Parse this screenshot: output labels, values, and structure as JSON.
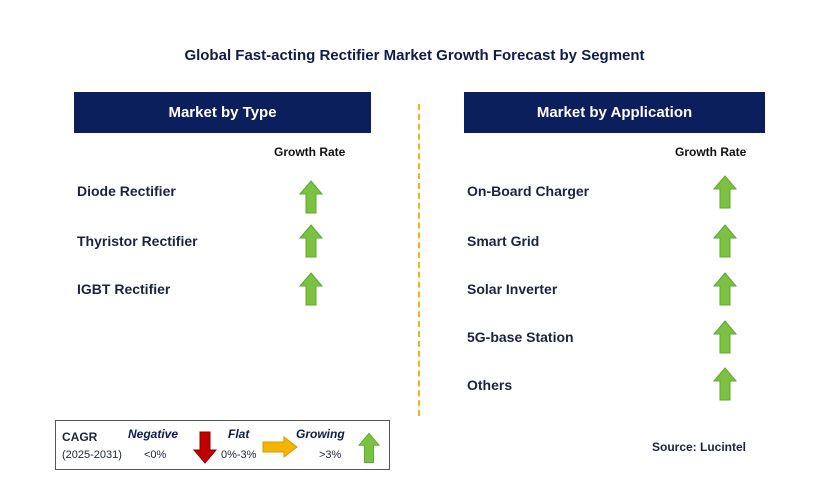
{
  "title": "Global Fast-acting Rectifier Market Growth Forecast by Segment",
  "left_panel": {
    "header": "Market by Type",
    "growth_label": "Growth Rate",
    "items": [
      {
        "label": "Diode Rectifier",
        "trend": "growing"
      },
      {
        "label": "Thyristor Rectifier",
        "trend": "growing"
      },
      {
        "label": "IGBT Rectifier",
        "trend": "growing"
      }
    ]
  },
  "right_panel": {
    "header": "Market by Application",
    "growth_label": "Growth Rate",
    "items": [
      {
        "label": "On-Board Charger",
        "trend": "growing"
      },
      {
        "label": "Smart Grid",
        "trend": "growing"
      },
      {
        "label": "Solar Inverter",
        "trend": "growing"
      },
      {
        "label": "5G-base Station",
        "trend": "growing"
      },
      {
        "label": "Others",
        "trend": "growing"
      }
    ]
  },
  "legend": {
    "cagr_label": "CAGR",
    "period": "(2025-2031)",
    "negative_label": "Negative",
    "negative_range": "<0%",
    "flat_label": "Flat",
    "flat_range": "0%-3%",
    "growing_label": "Growing",
    "growing_range": ">3%"
  },
  "source": "Source: Lucintel",
  "colors": {
    "header_bg": "#0b1f5c",
    "growing": "#7cc242",
    "negative": "#c00000",
    "flat": "#f5b400",
    "divider": "#f2b21a"
  }
}
